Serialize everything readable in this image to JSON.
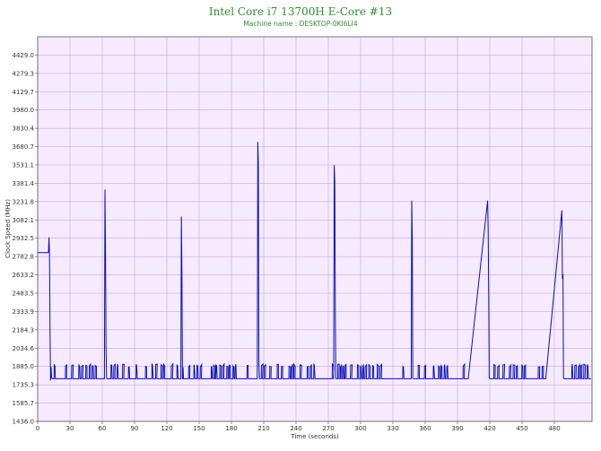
{
  "chart_data": {
    "type": "line",
    "title": "Intel Core i7 13700H E-Core #13",
    "subtitle": "Machine name : DESKTOP-0KI6LI4",
    "xlabel": "Time (seconds)",
    "ylabel": "Clock Speed (MHz)",
    "xlim": [
      0,
      515
    ],
    "ylim": [
      1436.0,
      4578.7
    ],
    "x_ticks": [
      0,
      30,
      60,
      90,
      120,
      150,
      180,
      210,
      240,
      270,
      300,
      330,
      360,
      390,
      420,
      450,
      480
    ],
    "y_ticks": [
      "1436.0",
      "1585.7",
      "1735.3",
      "1885.0",
      "2034.6",
      "2184.3",
      "2333.9",
      "2483.5",
      "2633.2",
      "2782.8",
      "2932.5",
      "3082.1",
      "3231.8",
      "3381.4",
      "3531.1",
      "3680.7",
      "3830.4",
      "3980.0",
      "4129.7",
      "4279.3",
      "4429.0"
    ],
    "grid": true,
    "colors": {
      "plot_bg": "#f6eaff",
      "grid": "#c9a9d9",
      "line": "#0a10b8",
      "title": "#2f8f2f"
    },
    "series": [
      {
        "baseline": 1785,
        "x": [
          0,
          10,
          10.5,
          11,
          11.5,
          12,
          12.5,
          13,
          13.5,
          14,
          55,
          62,
          62.5,
          63,
          63.5,
          64,
          64.5,
          120,
          133,
          133.5,
          134,
          134.5,
          135,
          135.5,
          190,
          204,
          204.5,
          205,
          205.5,
          206,
          206.5,
          260,
          275,
          275.5,
          276,
          276.5,
          277,
          277.5,
          330,
          347,
          347.5,
          348,
          348.5,
          349,
          349.5,
          400,
          418,
          418.5,
          419,
          419.5,
          420,
          420.5,
          472,
          487,
          487.5,
          488,
          488.5,
          489,
          489.5,
          514
        ],
        "y": [
          2815,
          2815,
          2940,
          2800,
          2150,
          1770,
          1880,
          1790,
          1785,
          1785,
          1785,
          1785,
          3330,
          2870,
          2050,
          1790,
          1785,
          1785,
          1785,
          3110,
          2650,
          1780,
          1880,
          1785,
          1785,
          1785,
          3720,
          3550,
          1900,
          1790,
          1785,
          1785,
          1785,
          3530,
          3400,
          2330,
          1790,
          1785,
          1785,
          1785,
          3240,
          2950,
          1790,
          1785,
          1785,
          1785,
          3240,
          3000,
          2470,
          1790,
          1785,
          1785,
          1785,
          3160,
          2600,
          2640,
          1790,
          1785,
          1785,
          1785
        ]
      }
    ]
  }
}
